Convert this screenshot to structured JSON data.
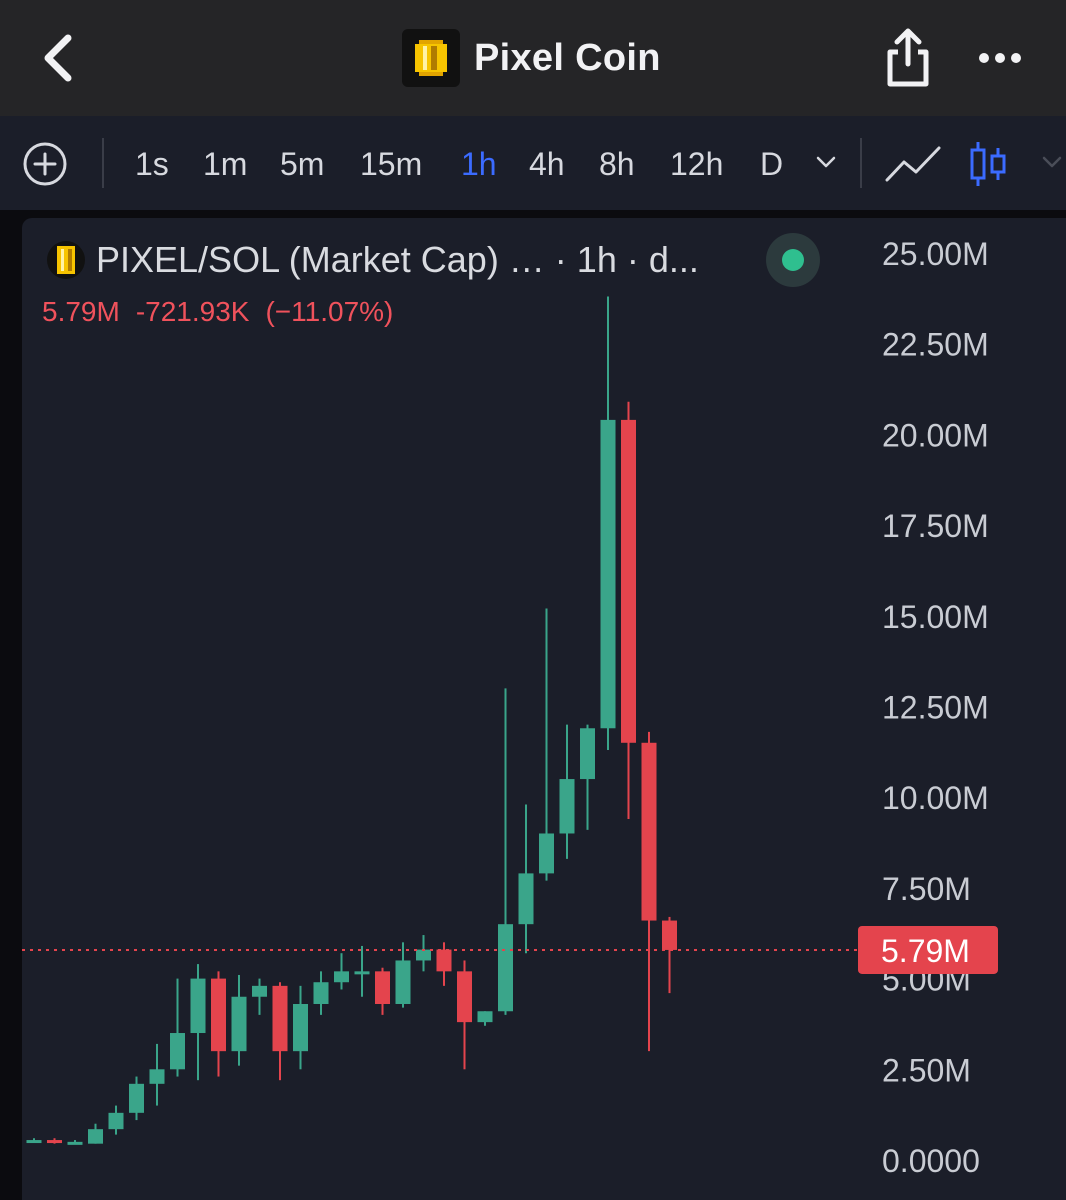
{
  "header": {
    "title": "Pixel Coin"
  },
  "toolbar": {
    "timeframes": [
      "1s",
      "1m",
      "5m",
      "15m",
      "1h",
      "4h",
      "8h",
      "12h",
      "D"
    ],
    "active_timeframe": "1h"
  },
  "legend": {
    "symbol_text": "PIXEL/SOL (Market Cap) …  · 1h · d...",
    "last_value": "5.79M",
    "change": "-721.93K",
    "change_pct": "(−11.07%)"
  },
  "colors": {
    "up": "#3aa58a",
    "down": "#e4444d",
    "accent": "#3b6bff",
    "panel": "#1b1e29",
    "live": "#2fbf8f"
  },
  "chart_data": {
    "type": "candlestick",
    "ylim": [
      0,
      25000000
    ],
    "y_ticks": [
      "0.0000",
      "2.50M",
      "5.00M",
      "7.50M",
      "10.00M",
      "12.50M",
      "15.00M",
      "17.50M",
      "20.00M",
      "22.50M",
      "25.00M"
    ],
    "current_price_label": "5.79M",
    "current_price": 5790000,
    "candles": [
      {
        "o": 0.55,
        "h": 0.6,
        "l": 0.5,
        "c": 0.55
      },
      {
        "o": 0.55,
        "h": 0.6,
        "l": 0.45,
        "c": 0.5
      },
      {
        "o": 0.5,
        "h": 0.55,
        "l": 0.45,
        "c": 0.5
      },
      {
        "o": 0.45,
        "h": 1.0,
        "l": 0.45,
        "c": 0.85
      },
      {
        "o": 0.85,
        "h": 1.5,
        "l": 0.7,
        "c": 1.3
      },
      {
        "o": 1.3,
        "h": 2.3,
        "l": 1.1,
        "c": 2.1
      },
      {
        "o": 2.1,
        "h": 3.2,
        "l": 1.5,
        "c": 2.5
      },
      {
        "o": 2.5,
        "h": 5.0,
        "l": 2.3,
        "c": 3.5
      },
      {
        "o": 3.5,
        "h": 5.4,
        "l": 2.2,
        "c": 5.0
      },
      {
        "o": 5.0,
        "h": 5.2,
        "l": 2.3,
        "c": 3.0
      },
      {
        "o": 3.0,
        "h": 5.1,
        "l": 2.6,
        "c": 4.5
      },
      {
        "o": 4.5,
        "h": 5.0,
        "l": 4.0,
        "c": 4.8
      },
      {
        "o": 4.8,
        "h": 4.9,
        "l": 2.2,
        "c": 3.0
      },
      {
        "o": 3.0,
        "h": 4.8,
        "l": 2.5,
        "c": 4.3
      },
      {
        "o": 4.3,
        "h": 5.2,
        "l": 4.0,
        "c": 4.9
      },
      {
        "o": 4.9,
        "h": 5.7,
        "l": 4.7,
        "c": 5.2
      },
      {
        "o": 5.2,
        "h": 5.9,
        "l": 4.5,
        "c": 5.2
      },
      {
        "o": 5.2,
        "h": 5.3,
        "l": 4.0,
        "c": 4.3
      },
      {
        "o": 4.3,
        "h": 6.0,
        "l": 4.2,
        "c": 5.5
      },
      {
        "o": 5.5,
        "h": 6.2,
        "l": 5.2,
        "c": 5.8
      },
      {
        "o": 5.8,
        "h": 6.0,
        "l": 4.8,
        "c": 5.2
      },
      {
        "o": 5.2,
        "h": 5.5,
        "l": 2.5,
        "c": 3.8
      },
      {
        "o": 3.8,
        "h": 4.1,
        "l": 3.7,
        "c": 4.1
      },
      {
        "o": 4.1,
        "h": 13.0,
        "l": 4.0,
        "c": 6.5
      },
      {
        "o": 6.5,
        "h": 9.8,
        "l": 5.7,
        "c": 7.9
      },
      {
        "o": 7.9,
        "h": 15.2,
        "l": 7.7,
        "c": 9.0
      },
      {
        "o": 9.0,
        "h": 12.0,
        "l": 8.3,
        "c": 10.5
      },
      {
        "o": 10.5,
        "h": 12.0,
        "l": 9.1,
        "c": 11.9
      },
      {
        "o": 11.9,
        "h": 23.8,
        "l": 11.3,
        "c": 20.4
      },
      {
        "o": 20.4,
        "h": 20.9,
        "l": 9.4,
        "c": 11.5
      },
      {
        "o": 11.5,
        "h": 11.8,
        "l": 3.0,
        "c": 6.6
      },
      {
        "o": 6.6,
        "h": 6.7,
        "l": 4.6,
        "c": 5.79
      }
    ]
  }
}
